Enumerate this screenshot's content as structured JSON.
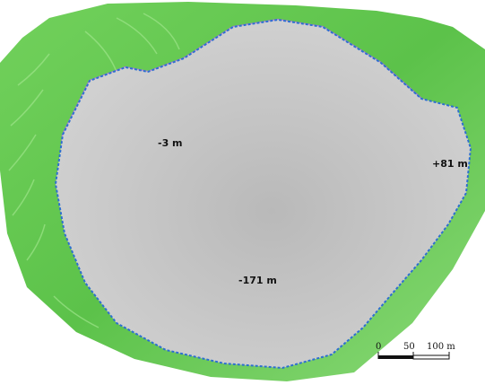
{
  "map": {
    "elevation_labels": {
      "upper_bench": "-3 m",
      "pit_bottom": "-171 m",
      "crest": "+81 m"
    },
    "scale_bar": {
      "ticks": [
        "0",
        "50",
        "100 m"
      ],
      "segment_m": 50,
      "total_m": 100
    },
    "colors": {
      "terrain": "#63c94f",
      "pit_surface": "#c6c6c6",
      "contour_purple": "#b07ad6",
      "contour_blue": "#3a43c8",
      "pit_boundary": "#2d6fd0",
      "ramp_light": "#dcdbd2"
    }
  }
}
